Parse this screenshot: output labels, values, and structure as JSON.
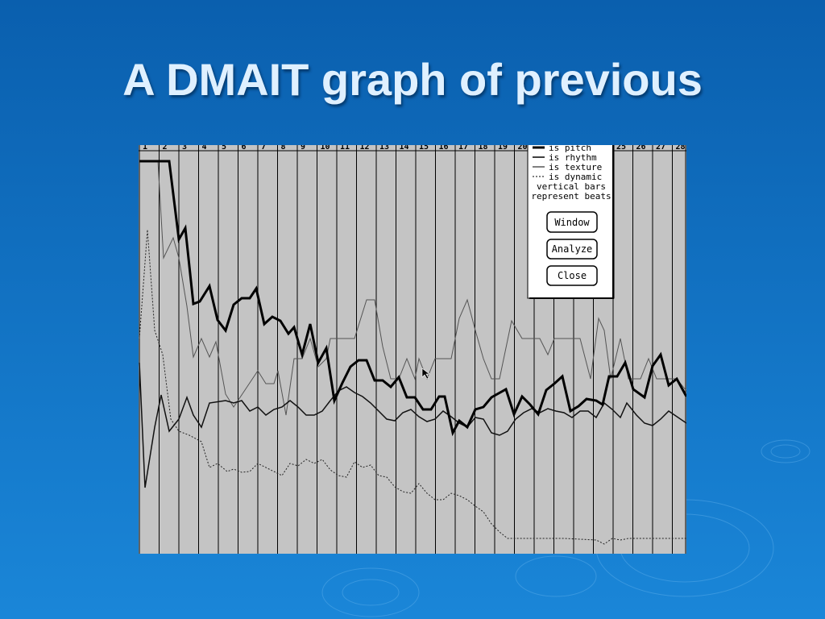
{
  "slide": {
    "title": "A DMAIT graph of previous"
  },
  "graph": {
    "beats": [
      "1",
      "2",
      "3",
      "4",
      "5",
      "6",
      "7",
      "8",
      "9",
      "10",
      "11",
      "12",
      "13",
      "14",
      "15",
      "16",
      "17",
      "18",
      "19",
      "20",
      "25",
      "26",
      "27",
      "28"
    ],
    "legend": {
      "items": [
        "is pitch",
        "is rhythm",
        "is texture",
        "is dynamic"
      ],
      "note": [
        "vertical bars",
        "represent beats"
      ]
    },
    "buttons": [
      "Window",
      "Analyze",
      "Close"
    ]
  }
}
